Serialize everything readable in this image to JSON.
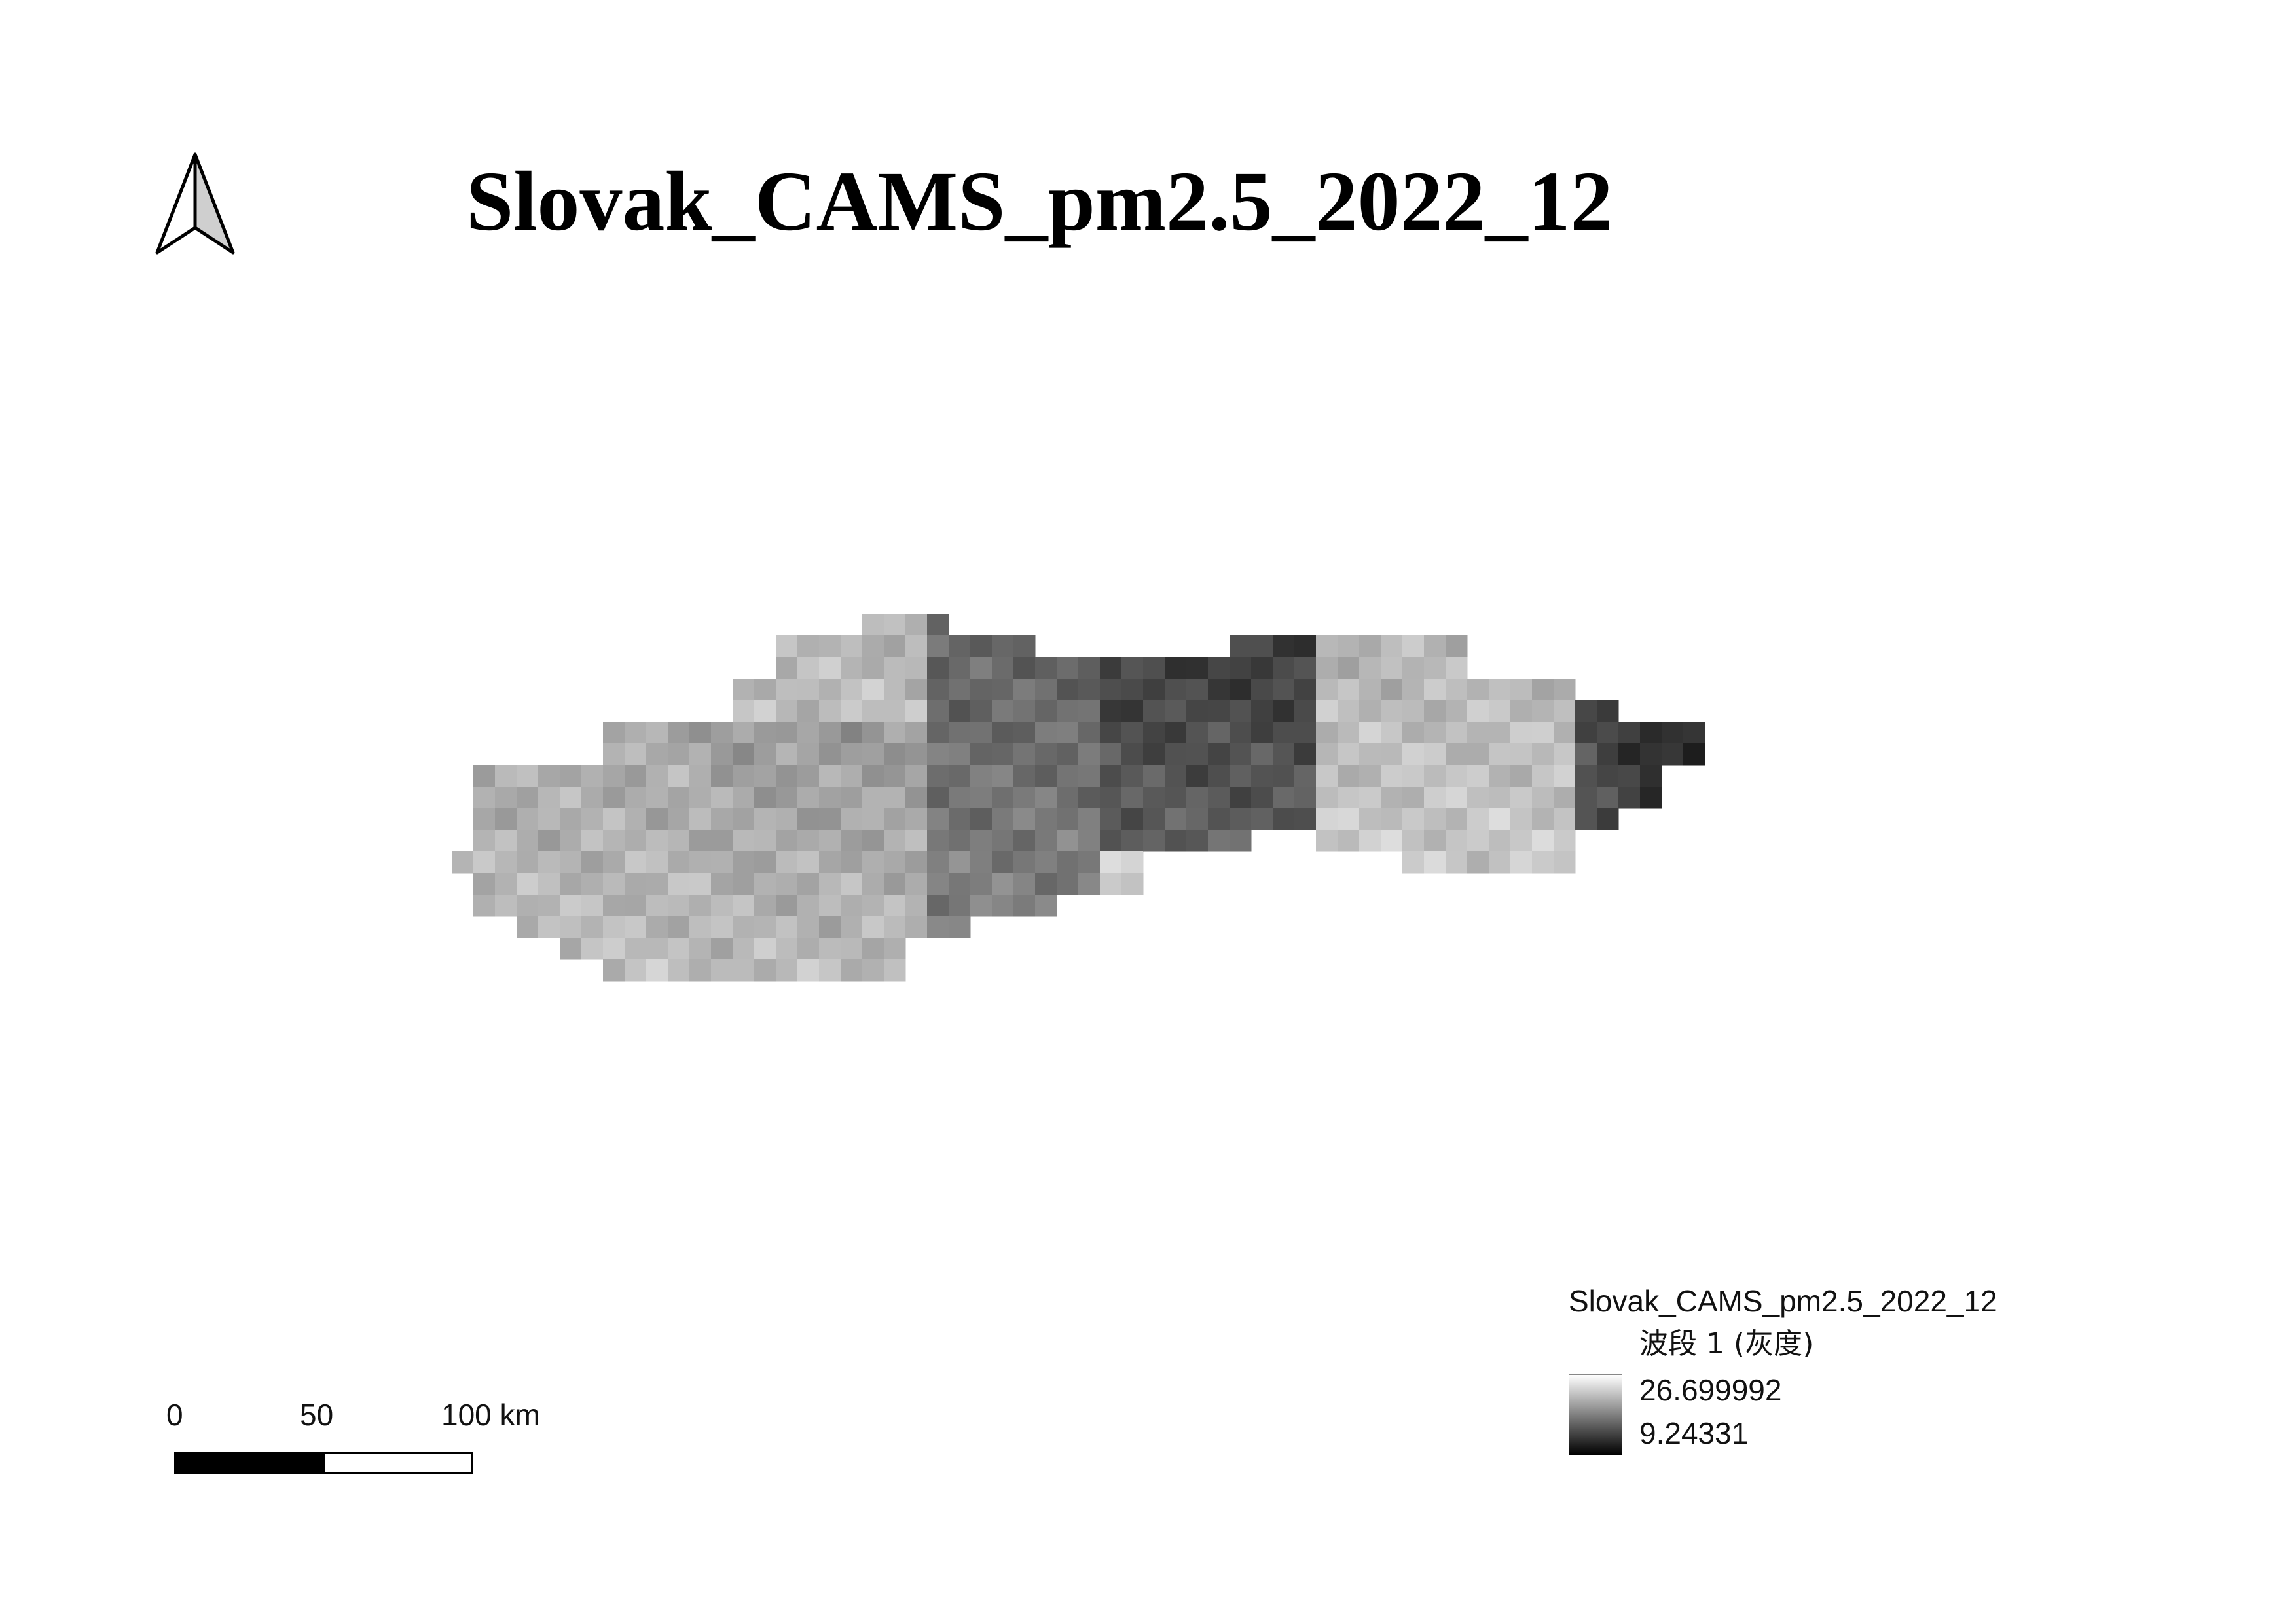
{
  "map": {
    "title": "Slovak_CAMS_pm2.5_2022_12"
  },
  "north_arrow": {
    "icon": "north-arrow-icon"
  },
  "legend": {
    "layer_title": "Slovak_CAMS_pm2.5_2022_12",
    "band_label": "波段 1 (灰度)",
    "max_value": "26.699992",
    "min_value": "9.24331",
    "ramp_colors": [
      "#ffffff",
      "#000000"
    ]
  },
  "scale_bar": {
    "labels": [
      "0",
      "50",
      "100 km"
    ]
  }
}
